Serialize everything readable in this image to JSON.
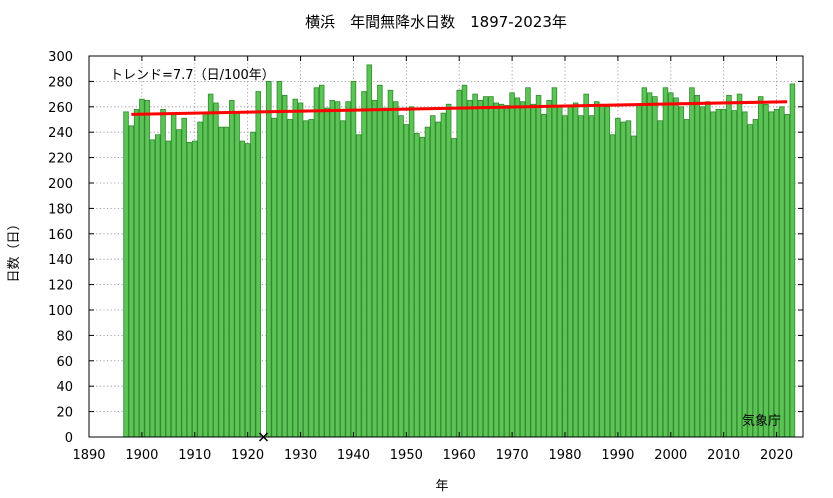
{
  "colors": {
    "bar_fill": "#5cc456",
    "bar_stroke": "#2f8a2b",
    "trend": "#ff0000"
  },
  "chart_data": {
    "type": "bar",
    "title": "横浜　年間無降水日数　1897-2023年",
    "xlabel": "年",
    "ylabel": "日数（日）",
    "xlim": [
      1890,
      2025
    ],
    "ylim": [
      0,
      300
    ],
    "xticks": [
      1890,
      1900,
      1910,
      1920,
      1930,
      1940,
      1950,
      1960,
      1970,
      1980,
      1990,
      2000,
      2010,
      2020
    ],
    "yticks": [
      0,
      20,
      40,
      60,
      80,
      100,
      120,
      140,
      160,
      180,
      200,
      220,
      240,
      260,
      280,
      300
    ],
    "grid": true,
    "x": [
      1897,
      1898,
      1899,
      1900,
      1901,
      1902,
      1903,
      1904,
      1905,
      1906,
      1907,
      1908,
      1909,
      1910,
      1911,
      1912,
      1913,
      1914,
      1915,
      1916,
      1917,
      1918,
      1919,
      1920,
      1921,
      1922,
      1923,
      1924,
      1925,
      1926,
      1927,
      1928,
      1929,
      1930,
      1931,
      1932,
      1933,
      1934,
      1935,
      1936,
      1937,
      1938,
      1939,
      1940,
      1941,
      1942,
      1943,
      1944,
      1945,
      1946,
      1947,
      1948,
      1949,
      1950,
      1951,
      1952,
      1953,
      1954,
      1955,
      1956,
      1957,
      1958,
      1959,
      1960,
      1961,
      1962,
      1963,
      1964,
      1965,
      1966,
      1967,
      1968,
      1969,
      1970,
      1971,
      1972,
      1973,
      1974,
      1975,
      1976,
      1977,
      1978,
      1979,
      1980,
      1981,
      1982,
      1983,
      1984,
      1985,
      1986,
      1987,
      1988,
      1989,
      1990,
      1991,
      1992,
      1993,
      1994,
      1995,
      1996,
      1997,
      1998,
      1999,
      2000,
      2001,
      2002,
      2003,
      2004,
      2005,
      2006,
      2007,
      2008,
      2009,
      2010,
      2011,
      2012,
      2013,
      2014,
      2015,
      2016,
      2017,
      2018,
      2019,
      2020,
      2021,
      2022,
      2023
    ],
    "values": [
      256,
      245,
      258,
      266,
      265,
      234,
      238,
      258,
      233,
      255,
      242,
      251,
      232,
      233,
      248,
      255,
      270,
      263,
      244,
      244,
      265,
      255,
      233,
      231,
      240,
      272,
      0,
      280,
      251,
      280,
      269,
      250,
      266,
      263,
      249,
      250,
      275,
      277,
      259,
      265,
      264,
      249,
      264,
      280,
      238,
      272,
      293,
      265,
      277,
      259,
      273,
      264,
      253,
      246,
      260,
      239,
      236,
      244,
      253,
      248,
      255,
      262,
      235,
      273,
      277,
      265,
      270,
      265,
      268,
      268,
      263,
      262,
      261,
      271,
      267,
      264,
      275,
      262,
      269,
      254,
      265,
      275,
      260,
      253,
      261,
      263,
      253,
      270,
      253,
      264,
      262,
      260,
      238,
      251,
      248,
      249,
      237,
      261,
      275,
      271,
      268,
      249,
      275,
      271,
      267,
      260,
      250,
      275,
      269,
      260,
      264,
      256,
      258,
      258,
      269,
      257,
      270,
      256,
      246,
      250,
      268,
      262,
      256,
      258,
      260,
      254,
      278
    ],
    "trend": {
      "start": [
        1898,
        254
      ],
      "end": [
        2022,
        264
      ]
    },
    "missing_marker": {
      "x": 1923,
      "y": 0
    },
    "annotations": {
      "trend_label": "トレンド=7.7（日/100年）",
      "source": "気象庁"
    }
  }
}
